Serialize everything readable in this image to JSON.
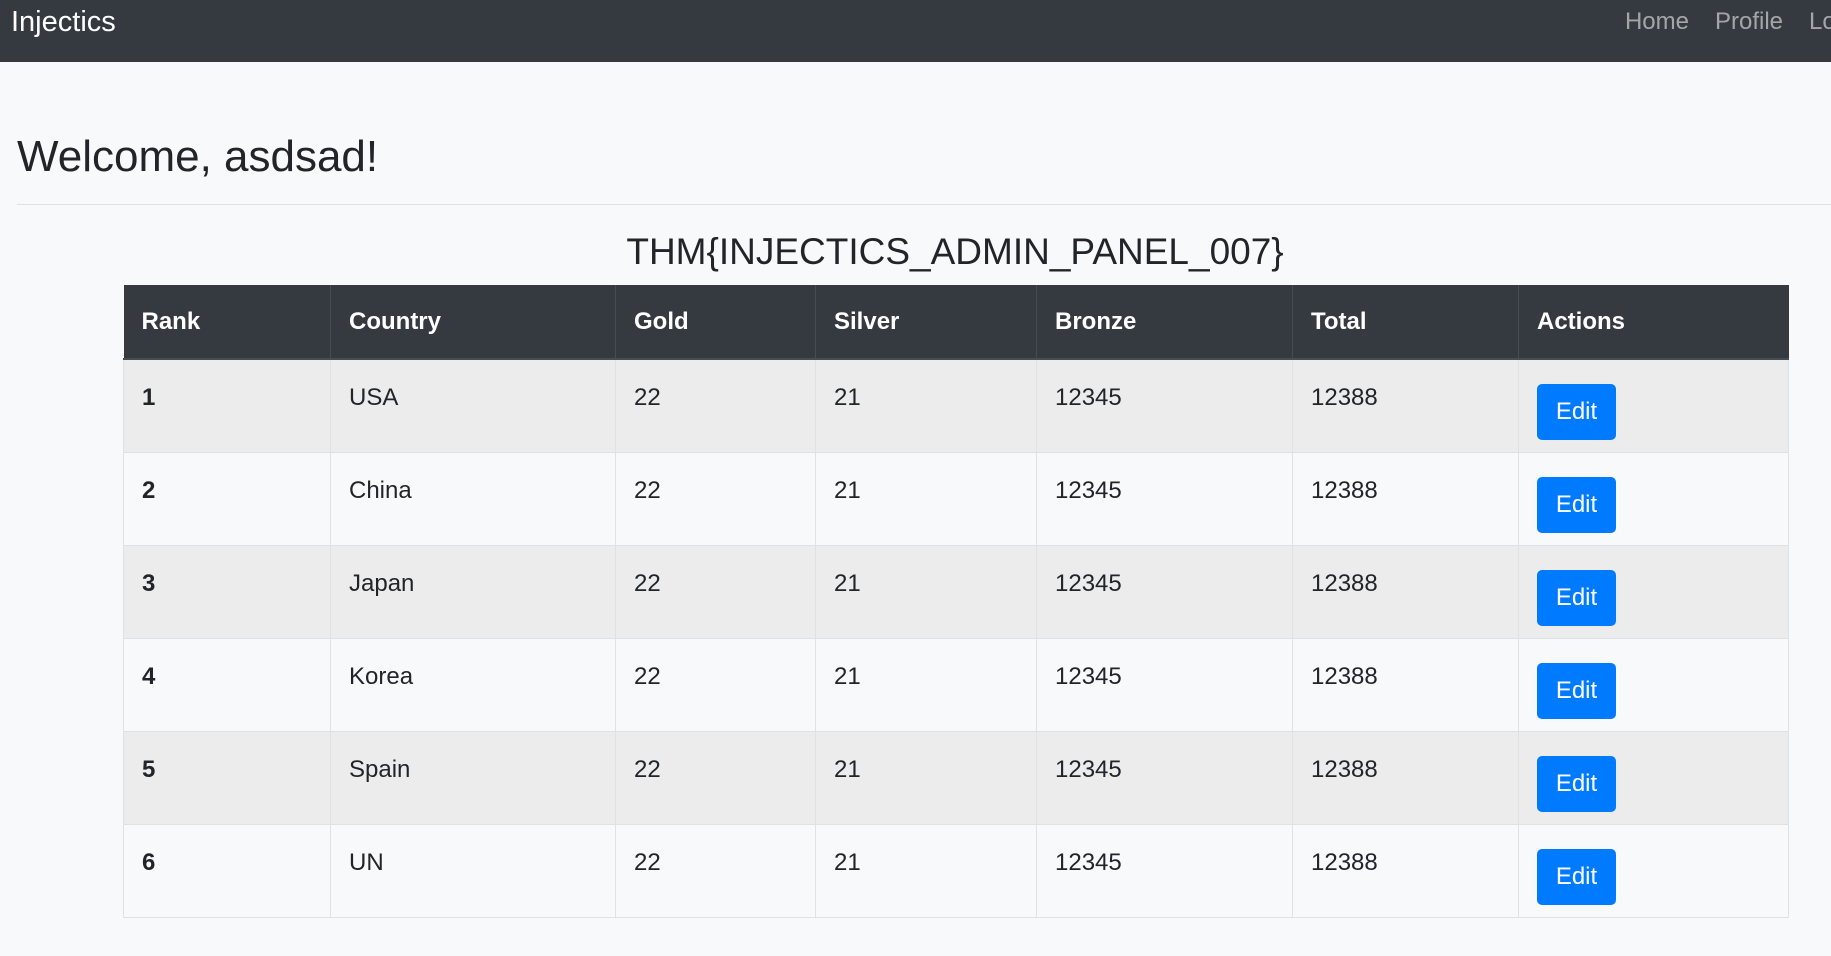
{
  "navbar": {
    "brand": "Injectics",
    "links": [
      "Home",
      "Profile",
      "Lo"
    ]
  },
  "welcome": "Welcome, asdsad!",
  "flag": "THM{INJECTICS_ADMIN_PANEL_007}",
  "table": {
    "headers": [
      "Rank",
      "Country",
      "Gold",
      "Silver",
      "Bronze",
      "Total",
      "Actions"
    ],
    "rows": [
      {
        "rank": "1",
        "country": "USA",
        "gold": "22",
        "silver": "21",
        "bronze": "12345",
        "total": "12388",
        "action": "Edit"
      },
      {
        "rank": "2",
        "country": "China",
        "gold": "22",
        "silver": "21",
        "bronze": "12345",
        "total": "12388",
        "action": "Edit"
      },
      {
        "rank": "3",
        "country": "Japan",
        "gold": "22",
        "silver": "21",
        "bronze": "12345",
        "total": "12388",
        "action": "Edit"
      },
      {
        "rank": "4",
        "country": "Korea",
        "gold": "22",
        "silver": "21",
        "bronze": "12345",
        "total": "12388",
        "action": "Edit"
      },
      {
        "rank": "5",
        "country": "Spain",
        "gold": "22",
        "silver": "21",
        "bronze": "12345",
        "total": "12388",
        "action": "Edit"
      },
      {
        "rank": "6",
        "country": "UN",
        "gold": "22",
        "silver": "21",
        "bronze": "12345",
        "total": "12388",
        "action": "Edit"
      }
    ]
  },
  "colors": {
    "navbar": "#343a40",
    "page_background": "#f8f9fa",
    "button": "#007bff",
    "striped_row": "#ececec"
  }
}
